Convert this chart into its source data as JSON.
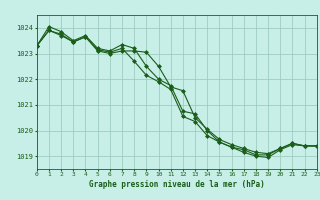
{
  "title": "Graphe pression niveau de la mer (hPa)",
  "background_color": "#c8eee8",
  "plot_bg_color": "#c8eee8",
  "grid_color": "#a0ccc0",
  "line_color": "#1a5e1a",
  "xlim": [
    0,
    23
  ],
  "ylim": [
    1018.5,
    1024.5
  ],
  "yticks": [
    1019,
    1020,
    1021,
    1022,
    1023,
    1024
  ],
  "xticks": [
    0,
    1,
    2,
    3,
    4,
    5,
    6,
    7,
    8,
    9,
    10,
    11,
    12,
    13,
    14,
    15,
    16,
    17,
    18,
    19,
    20,
    21,
    22,
    23
  ],
  "series": [
    [
      1023.3,
      1023.9,
      1023.7,
      1023.45,
      1023.65,
      1023.1,
      1023.0,
      1023.1,
      1023.1,
      1023.05,
      1022.5,
      1021.7,
      1021.55,
      1020.5,
      1020.05,
      1019.65,
      1019.45,
      1019.3,
      1019.15,
      1019.1,
      1019.3,
      1019.5,
      1019.4,
      1019.4
    ],
    [
      1023.3,
      1024.05,
      1023.85,
      1023.5,
      1023.7,
      1023.2,
      1023.1,
      1023.35,
      1023.2,
      1022.5,
      1022.0,
      1021.75,
      1020.75,
      1020.65,
      1020.0,
      1019.55,
      1019.35,
      1019.25,
      1019.05,
      1019.05,
      1019.3,
      1019.5,
      1019.4,
      1019.4
    ],
    [
      1023.3,
      1023.9,
      1023.75,
      1023.45,
      1023.65,
      1023.15,
      1023.05,
      1023.2,
      1022.7,
      1022.15,
      1021.9,
      1021.6,
      1020.55,
      1020.35,
      1019.8,
      1019.55,
      1019.35,
      1019.15,
      1019.0,
      1018.95,
      1019.25,
      1019.45,
      1019.4,
      1019.4
    ]
  ]
}
